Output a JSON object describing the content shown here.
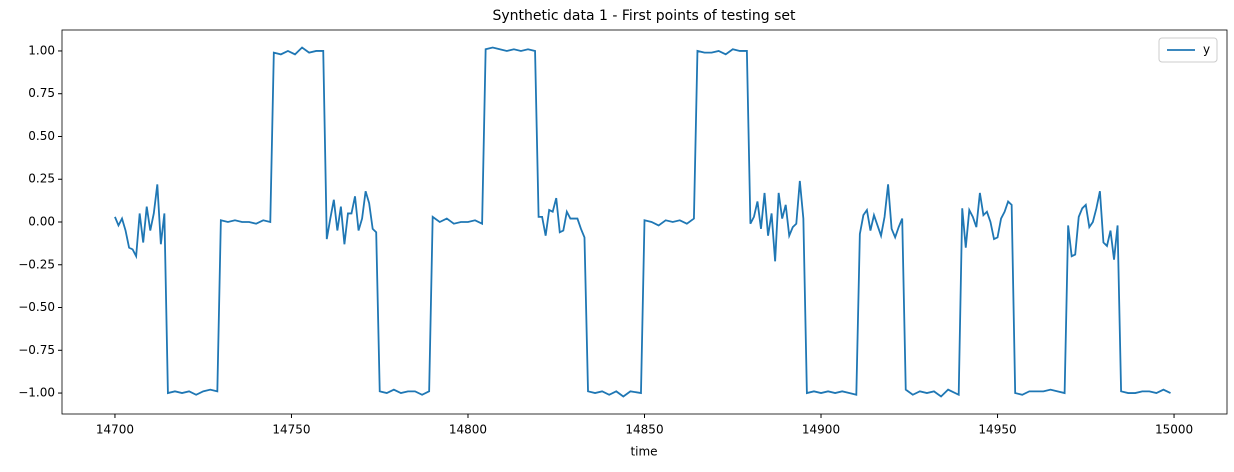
{
  "chart_data": {
    "type": "line",
    "title": "Synthetic data 1 - First points of testing set",
    "xlabel": "time",
    "x": [
      14700,
      14701,
      14702,
      14703,
      14704,
      14705,
      14706,
      14707,
      14708,
      14709,
      14710,
      14711,
      14712,
      14713,
      14714,
      14715,
      14717,
      14719,
      14721,
      14723,
      14725,
      14727,
      14729,
      14730,
      14732,
      14734,
      14736,
      14738,
      14740,
      14742,
      14744,
      14745,
      14747,
      14749,
      14751,
      14753,
      14755,
      14757,
      14759,
      14760,
      14761,
      14762,
      14763,
      14764,
      14765,
      14766,
      14767,
      14768,
      14769,
      14770,
      14771,
      14772,
      14773,
      14774,
      14775,
      14777,
      14779,
      14781,
      14783,
      14785,
      14787,
      14789,
      14790,
      14792,
      14794,
      14796,
      14798,
      14800,
      14802,
      14804,
      14805,
      14807,
      14809,
      14811,
      14813,
      14815,
      14817,
      14819,
      14820,
      14821,
      14822,
      14823,
      14824,
      14825,
      14826,
      14827,
      14828,
      14829,
      14830,
      14831,
      14832,
      14833,
      14834,
      14836,
      14838,
      14840,
      14842,
      14844,
      14846,
      14849,
      14850,
      14852,
      14854,
      14856,
      14858,
      14860,
      14862,
      14864,
      14865,
      14867,
      14869,
      14871,
      14873,
      14875,
      14877,
      14879,
      14880,
      14881,
      14882,
      14883,
      14884,
      14885,
      14886,
      14887,
      14888,
      14889,
      14890,
      14891,
      14892,
      14893,
      14894,
      14895,
      14896,
      14898,
      14900,
      14902,
      14904,
      14906,
      14908,
      14910,
      14911,
      14912,
      14913,
      14914,
      14915,
      14916,
      14917,
      14918,
      14919,
      14920,
      14921,
      14922,
      14923,
      14924,
      14926,
      14928,
      14930,
      14932,
      14934,
      14936,
      14939,
      14940,
      14941,
      14942,
      14943,
      14944,
      14945,
      14946,
      14947,
      14948,
      14949,
      14950,
      14951,
      14952,
      14953,
      14954,
      14955,
      14957,
      14959,
      14961,
      14963,
      14965,
      14967,
      14969,
      14970,
      14971,
      14972,
      14973,
      14974,
      14975,
      14976,
      14977,
      14978,
      14979,
      14980,
      14981,
      14982,
      14983,
      14984,
      14985,
      14987,
      14989,
      14991,
      14993,
      14995,
      14997,
      14999
    ],
    "series": [
      {
        "name": "y",
        "color": "#1f77b4",
        "values": [
          0.03,
          -0.02,
          0.02,
          -0.05,
          -0.15,
          -0.16,
          -0.2,
          0.05,
          -0.12,
          0.09,
          -0.05,
          0.05,
          0.22,
          -0.13,
          0.05,
          -1.0,
          -0.99,
          -1.0,
          -0.99,
          -1.01,
          -0.99,
          -0.98,
          -0.99,
          0.01,
          0.0,
          0.01,
          0.0,
          0.0,
          -0.01,
          0.01,
          0.0,
          0.99,
          0.98,
          1.0,
          0.98,
          1.02,
          0.99,
          1.0,
          1.0,
          -0.1,
          0.02,
          0.13,
          -0.05,
          0.09,
          -0.13,
          0.05,
          0.05,
          0.15,
          -0.05,
          0.02,
          0.18,
          0.11,
          -0.04,
          -0.06,
          -0.99,
          -1.0,
          -0.98,
          -1.0,
          -0.99,
          -0.99,
          -1.01,
          -0.99,
          0.03,
          0.0,
          0.02,
          -0.01,
          0.0,
          0.0,
          0.01,
          -0.01,
          1.01,
          1.02,
          1.01,
          1.0,
          1.01,
          1.0,
          1.01,
          1.0,
          0.03,
          0.03,
          -0.08,
          0.07,
          0.06,
          0.14,
          -0.06,
          -0.05,
          0.06,
          0.02,
          0.02,
          0.02,
          -0.04,
          -0.09,
          -0.99,
          -1.0,
          -0.99,
          -1.01,
          -0.99,
          -1.02,
          -0.99,
          -1.0,
          0.01,
          0.0,
          -0.02,
          0.01,
          0.0,
          0.01,
          -0.01,
          0.02,
          1.0,
          0.99,
          0.99,
          1.0,
          0.98,
          1.01,
          1.0,
          1.0,
          -0.01,
          0.03,
          0.12,
          -0.04,
          0.17,
          -0.08,
          0.05,
          -0.23,
          0.17,
          0.02,
          0.1,
          -0.08,
          -0.03,
          -0.01,
          0.24,
          0.02,
          -1.0,
          -0.99,
          -1.0,
          -0.99,
          -1.0,
          -0.99,
          -1.0,
          -1.01,
          -0.07,
          0.04,
          0.07,
          -0.05,
          0.04,
          -0.02,
          -0.08,
          0.03,
          0.22,
          -0.04,
          -0.09,
          -0.03,
          0.02,
          -0.98,
          -1.01,
          -0.99,
          -1.0,
          -0.99,
          -1.02,
          -0.98,
          -1.01,
          0.08,
          -0.15,
          0.07,
          0.03,
          -0.03,
          0.17,
          0.04,
          0.06,
          0.0,
          -0.1,
          -0.09,
          0.02,
          0.06,
          0.12,
          0.1,
          -1.0,
          -1.01,
          -0.99,
          -0.99,
          -0.99,
          -0.98,
          -0.99,
          -1.0,
          -0.02,
          -0.2,
          -0.19,
          0.03,
          0.08,
          0.1,
          -0.03,
          0.0,
          0.08,
          0.18,
          -0.12,
          -0.14,
          -0.05,
          -0.22,
          -0.02,
          -0.99,
          -1.0,
          -1.0,
          -0.99,
          -0.99,
          -1.0,
          -0.98,
          -1.0
        ]
      }
    ],
    "xlim": [
      14685,
      15015
    ],
    "xticks": [
      14700,
      14750,
      14800,
      14850,
      14900,
      14950,
      15000
    ],
    "ylim": [
      -1.1225,
      1.1225
    ],
    "yticks": [
      {
        "value": -1,
        "label": "−1.00"
      },
      {
        "value": -0.75,
        "label": "−0.75"
      },
      {
        "value": -0.5,
        "label": "−0.50"
      },
      {
        "value": -0.25,
        "label": "−0.25"
      },
      {
        "value": 0,
        "label": "0.00"
      },
      {
        "value": 0.25,
        "label": "0.25"
      },
      {
        "value": 0.5,
        "label": "0.50"
      },
      {
        "value": 0.75,
        "label": "0.75"
      },
      {
        "value": 1,
        "label": "1.00"
      }
    ],
    "grid": false,
    "legend": "upper right"
  }
}
